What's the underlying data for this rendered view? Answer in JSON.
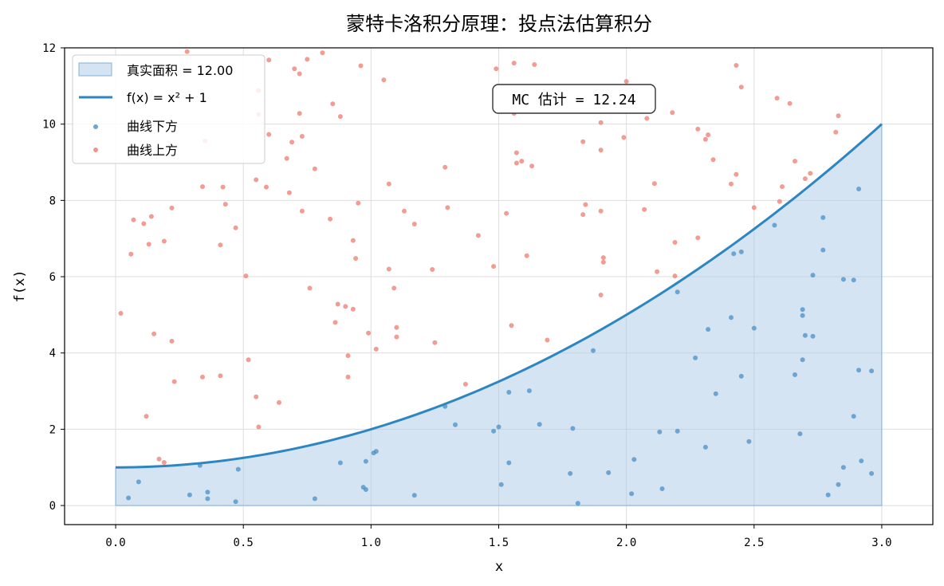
{
  "chart_data": {
    "type": "scatter",
    "title": "蒙特卡洛积分原理：投点法估算积分",
    "xlabel": "x",
    "ylabel": "f(x)",
    "xlim": [
      -0.2,
      3.2
    ],
    "ylim": [
      -0.5,
      12
    ],
    "xticks": [
      0.0,
      0.5,
      1.0,
      1.5,
      2.0,
      2.5,
      3.0
    ],
    "xtick_labels": [
      "0.0",
      "0.5",
      "1.0",
      "1.5",
      "2.0",
      "2.5",
      "3.0"
    ],
    "yticks": [
      0,
      2,
      4,
      6,
      8,
      10,
      12
    ],
    "ytick_labels": [
      "0",
      "2",
      "4",
      "6",
      "8",
      "10",
      "12"
    ],
    "grid": true,
    "legend_position": "top-left",
    "curve": {
      "name": "f(x) = x² + 1",
      "x_range": [
        0,
        3
      ],
      "color": "#2e86c1"
    },
    "area": {
      "name": "真实面积 = 12.00",
      "color": "#a9c9e6"
    },
    "annotation": "MC 估计 = 12.24",
    "series": [
      {
        "name": "曲线下方",
        "color": "#4a90c8",
        "points": [
          [
            0.05,
            0.2
          ],
          [
            0.09,
            0.62
          ],
          [
            0.29,
            0.28
          ],
          [
            0.33,
            1.05
          ],
          [
            0.36,
            0.35
          ],
          [
            0.36,
            0.18
          ],
          [
            0.47,
            0.1
          ],
          [
            0.48,
            0.95
          ],
          [
            0.78,
            0.18
          ],
          [
            0.88,
            1.12
          ],
          [
            0.97,
            0.48
          ],
          [
            0.98,
            0.42
          ],
          [
            0.98,
            1.16
          ],
          [
            1.01,
            1.38
          ],
          [
            1.02,
            1.42
          ],
          [
            1.17,
            0.27
          ],
          [
            1.29,
            2.6
          ],
          [
            1.33,
            2.12
          ],
          [
            1.48,
            1.95
          ],
          [
            1.5,
            2.06
          ],
          [
            1.51,
            0.55
          ],
          [
            1.54,
            1.12
          ],
          [
            1.54,
            2.97
          ],
          [
            1.62,
            3.01
          ],
          [
            1.66,
            2.13
          ],
          [
            1.78,
            0.84
          ],
          [
            1.79,
            2.02
          ],
          [
            1.81,
            0.06
          ],
          [
            1.87,
            4.06
          ],
          [
            1.93,
            0.86
          ],
          [
            2.02,
            0.31
          ],
          [
            2.03,
            1.21
          ],
          [
            2.13,
            1.93
          ],
          [
            2.14,
            0.44
          ],
          [
            2.2,
            1.95
          ],
          [
            2.2,
            5.6
          ],
          [
            2.27,
            3.87
          ],
          [
            2.31,
            1.53
          ],
          [
            2.32,
            4.62
          ],
          [
            2.35,
            2.93
          ],
          [
            2.41,
            4.93
          ],
          [
            2.42,
            6.6
          ],
          [
            2.45,
            6.65
          ],
          [
            2.45,
            3.39
          ],
          [
            2.48,
            1.68
          ],
          [
            2.5,
            4.65
          ],
          [
            2.58,
            7.35
          ],
          [
            2.66,
            3.43
          ],
          [
            2.68,
            1.88
          ],
          [
            2.69,
            3.82
          ],
          [
            2.69,
            5.14
          ],
          [
            2.69,
            4.98
          ],
          [
            2.7,
            4.46
          ],
          [
            2.73,
            6.04
          ],
          [
            2.73,
            4.44
          ],
          [
            2.77,
            7.55
          ],
          [
            2.77,
            6.7
          ],
          [
            2.79,
            0.28
          ],
          [
            2.83,
            0.55
          ],
          [
            2.85,
            5.93
          ],
          [
            2.85,
            1.0
          ],
          [
            2.89,
            5.91
          ],
          [
            2.89,
            2.34
          ],
          [
            2.91,
            8.3
          ],
          [
            2.91,
            3.55
          ],
          [
            2.92,
            1.17
          ],
          [
            2.96,
            3.53
          ],
          [
            2.96,
            0.84
          ]
        ]
      },
      {
        "name": "曲线上方",
        "color": "#ec7b70",
        "points": [
          [
            0.02,
            5.04
          ],
          [
            0.06,
            6.59
          ],
          [
            0.07,
            7.49
          ],
          [
            0.11,
            7.39
          ],
          [
            0.12,
            2.34
          ],
          [
            0.13,
            6.85
          ],
          [
            0.14,
            7.58
          ],
          [
            0.15,
            4.5
          ],
          [
            0.17,
            1.22
          ],
          [
            0.19,
            1.13
          ],
          [
            0.19,
            6.93
          ],
          [
            0.22,
            7.8
          ],
          [
            0.22,
            4.31
          ],
          [
            0.23,
            3.25
          ],
          [
            0.28,
            11.9
          ],
          [
            0.34,
            3.37
          ],
          [
            0.34,
            8.36
          ],
          [
            0.35,
            9.56
          ],
          [
            0.41,
            3.4
          ],
          [
            0.41,
            6.83
          ],
          [
            0.42,
            8.35
          ],
          [
            0.43,
            7.9
          ],
          [
            0.47,
            7.28
          ],
          [
            0.51,
            6.02
          ],
          [
            0.52,
            3.82
          ],
          [
            0.55,
            2.85
          ],
          [
            0.55,
            8.54
          ],
          [
            0.56,
            2.06
          ],
          [
            0.56,
            10.25
          ],
          [
            0.56,
            10.88
          ],
          [
            0.59,
            8.35
          ],
          [
            0.6,
            9.73
          ],
          [
            0.6,
            11.68
          ],
          [
            0.64,
            2.7
          ],
          [
            0.67,
            9.1
          ],
          [
            0.68,
            8.2
          ],
          [
            0.69,
            9.53
          ],
          [
            0.7,
            11.45
          ],
          [
            0.72,
            11.32
          ],
          [
            0.72,
            10.28
          ],
          [
            0.73,
            9.68
          ],
          [
            0.73,
            7.72
          ],
          [
            0.75,
            11.7
          ],
          [
            0.76,
            5.7
          ],
          [
            0.78,
            8.83
          ],
          [
            0.81,
            11.87
          ],
          [
            0.84,
            7.51
          ],
          [
            0.85,
            10.53
          ],
          [
            0.86,
            4.8
          ],
          [
            0.87,
            5.28
          ],
          [
            0.88,
            10.2
          ],
          [
            0.9,
            5.22
          ],
          [
            0.91,
            3.93
          ],
          [
            0.91,
            3.37
          ],
          [
            0.93,
            6.95
          ],
          [
            0.93,
            5.15
          ],
          [
            0.94,
            6.48
          ],
          [
            0.95,
            7.93
          ],
          [
            0.96,
            11.53
          ],
          [
            0.99,
            4.52
          ],
          [
            1.02,
            4.1
          ],
          [
            1.05,
            11.16
          ],
          [
            1.07,
            6.2
          ],
          [
            1.07,
            8.43
          ],
          [
            1.09,
            5.7
          ],
          [
            1.1,
            4.42
          ],
          [
            1.1,
            4.67
          ],
          [
            1.13,
            7.72
          ],
          [
            1.17,
            7.38
          ],
          [
            1.24,
            6.19
          ],
          [
            1.25,
            4.27
          ],
          [
            1.29,
            8.87
          ],
          [
            1.3,
            7.81
          ],
          [
            1.37,
            3.18
          ],
          [
            1.42,
            7.08
          ],
          [
            1.48,
            6.27
          ],
          [
            1.49,
            11.45
          ],
          [
            1.53,
            7.66
          ],
          [
            1.55,
            4.72
          ],
          [
            1.56,
            10.28
          ],
          [
            1.56,
            11.6
          ],
          [
            1.57,
            9.25
          ],
          [
            1.57,
            8.98
          ],
          [
            1.59,
            9.03
          ],
          [
            1.61,
            6.55
          ],
          [
            1.63,
            8.9
          ],
          [
            1.64,
            11.56
          ],
          [
            1.69,
            4.34
          ],
          [
            1.8,
            10.73
          ],
          [
            1.83,
            9.54
          ],
          [
            1.83,
            7.63
          ],
          [
            1.84,
            7.89
          ],
          [
            1.9,
            9.32
          ],
          [
            1.9,
            7.72
          ],
          [
            1.9,
            5.52
          ],
          [
            1.9,
            10.04
          ],
          [
            1.91,
            6.38
          ],
          [
            1.91,
            6.5
          ],
          [
            1.99,
            9.65
          ],
          [
            2.0,
            11.12
          ],
          [
            2.07,
            7.76
          ],
          [
            2.08,
            10.15
          ],
          [
            2.11,
            8.44
          ],
          [
            2.12,
            6.13
          ],
          [
            2.18,
            10.3
          ],
          [
            2.19,
            6.02
          ],
          [
            2.19,
            6.9
          ],
          [
            2.28,
            7.02
          ],
          [
            2.28,
            9.87
          ],
          [
            2.31,
            9.6
          ],
          [
            2.32,
            9.72
          ],
          [
            2.34,
            9.07
          ],
          [
            2.41,
            8.43
          ],
          [
            2.43,
            11.54
          ],
          [
            2.43,
            8.68
          ],
          [
            2.45,
            10.97
          ],
          [
            2.5,
            7.81
          ],
          [
            2.59,
            10.68
          ],
          [
            2.6,
            7.97
          ],
          [
            2.61,
            8.36
          ],
          [
            2.64,
            10.54
          ],
          [
            2.66,
            9.03
          ],
          [
            2.7,
            8.57
          ],
          [
            2.72,
            8.71
          ],
          [
            2.82,
            9.79
          ],
          [
            2.83,
            10.22
          ]
        ]
      }
    ]
  }
}
